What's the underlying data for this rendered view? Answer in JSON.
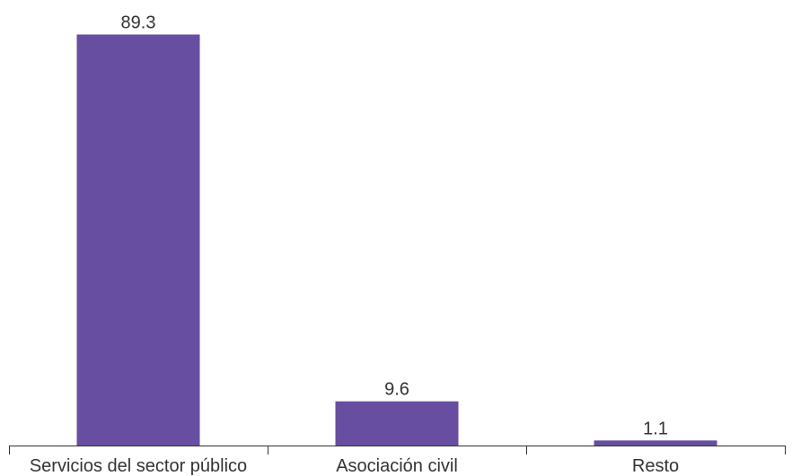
{
  "chart_data": {
    "type": "bar",
    "categories": [
      "Servicios del sector público",
      "Asociación civil",
      "Resto"
    ],
    "values": [
      89.3,
      9.6,
      1.1
    ],
    "value_labels": [
      "89.3",
      "9.6",
      "1.1"
    ],
    "title": "",
    "xlabel": "",
    "ylabel": "",
    "ylim": [
      0,
      89.3
    ],
    "grid": false,
    "legend": "none",
    "colors": {
      "bar": "#674ea0",
      "axis": "#333333",
      "text": "#333333"
    }
  }
}
